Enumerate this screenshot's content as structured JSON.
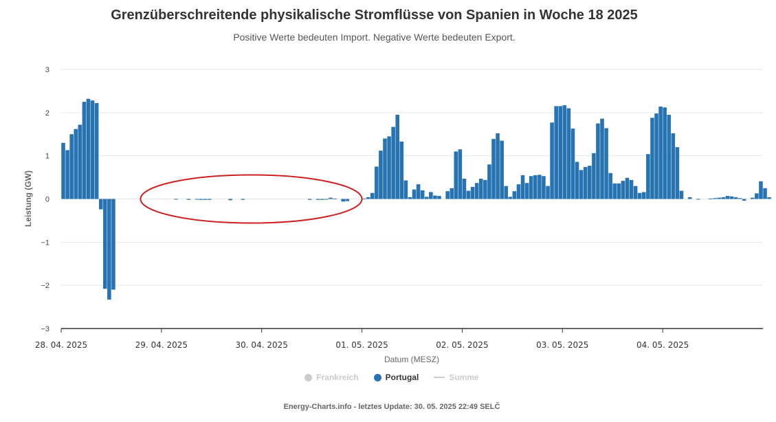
{
  "title": "Grenzüberschreitende physikalische Stromflüsse von Spanien in Woche 18 2025",
  "subtitle": "Positive Werte bedeuten Import. Negative Werte bedeuten Export.",
  "footer": "Energy-Charts.info - letztes Update: 30. 05. 2025 22:49 SELČ",
  "legend": [
    {
      "label": "Frankreich",
      "visible": false,
      "color": "#cccccc",
      "marker": "dot"
    },
    {
      "label": "Portugal",
      "visible": true,
      "color": "#2874b2",
      "marker": "dot"
    },
    {
      "label": "Summe",
      "visible": false,
      "color": "#cccccc",
      "marker": "line"
    }
  ],
  "chart_data": {
    "type": "bar",
    "xlabel": "Datum (MESZ)",
    "ylabel": "Leistung (GW)",
    "ylim": [
      -3,
      3
    ],
    "yticks": [
      "3",
      "2",
      "1",
      "0",
      "−1",
      "−2",
      "−3"
    ],
    "xticks": [
      "28. 04. 2025",
      "29. 04. 2025",
      "30. 04. 2025",
      "01. 05. 2025",
      "02. 05. 2025",
      "03. 05. 2025",
      "04. 05. 2025"
    ],
    "x_start": "28. 04. 2025 00:00",
    "interval_hours": 1,
    "grid": true,
    "bar_color": "#2874b2",
    "annotation": {
      "shape": "ellipse",
      "color": "#cc1f1f",
      "from_hour": 19,
      "to_hour": 72
    },
    "series": [
      {
        "name": "Portugal",
        "values": [
          1.3,
          1.13,
          1.5,
          1.62,
          1.72,
          2.25,
          2.32,
          2.28,
          2.22,
          -0.24,
          -2.08,
          -2.33,
          -2.1,
          0,
          0,
          0,
          0,
          0,
          0,
          0,
          0,
          0,
          0,
          0,
          0,
          0,
          0,
          -0.01,
          0,
          0,
          -0.02,
          0,
          -0.01,
          -0.02,
          -0.02,
          -0.02,
          0,
          0,
          0,
          0,
          -0.03,
          0,
          0,
          -0.02,
          0,
          0,
          0,
          0,
          0,
          0,
          0,
          0,
          0,
          0,
          0,
          0,
          0,
          0,
          0,
          -0.02,
          0,
          -0.02,
          -0.02,
          -0.01,
          0.03,
          0.01,
          0,
          -0.06,
          -0.05,
          0,
          0,
          0,
          0.01,
          0.04,
          0.14,
          0.75,
          1.12,
          1.4,
          1.45,
          1.67,
          1.95,
          1.33,
          0.43,
          0.04,
          0.22,
          0.34,
          0.2,
          0.05,
          0.16,
          0.08,
          0.07,
          0.0,
          0.18,
          0.25,
          1.1,
          1.15,
          0.47,
          0.19,
          0.28,
          0.37,
          0.47,
          0.44,
          0.8,
          1.39,
          1.52,
          1.35,
          0.3,
          0.05,
          0.18,
          0.34,
          0.55,
          0.37,
          0.53,
          0.55,
          0.56,
          0.53,
          0.3,
          1.77,
          2.15,
          2.15,
          2.17,
          2.1,
          1.63,
          0.86,
          0.67,
          0.74,
          0.77,
          1.06,
          1.75,
          1.86,
          1.64,
          0.6,
          0.36,
          0.36,
          0.42,
          0.49,
          0.44,
          0.3,
          0.14,
          0.16,
          1.04,
          1.88,
          1.98,
          2.14,
          2.12,
          1.95,
          1.52,
          1.2,
          0.19,
          0.0,
          0.04,
          0.0,
          -0.01,
          0.0,
          0.0,
          0.01,
          0.02,
          0.03,
          0.04,
          0.07,
          0.06,
          0.04,
          0.02,
          -0.04,
          0.0,
          0.03,
          0.13,
          0.41,
          0.25,
          0.04
        ]
      }
    ]
  }
}
